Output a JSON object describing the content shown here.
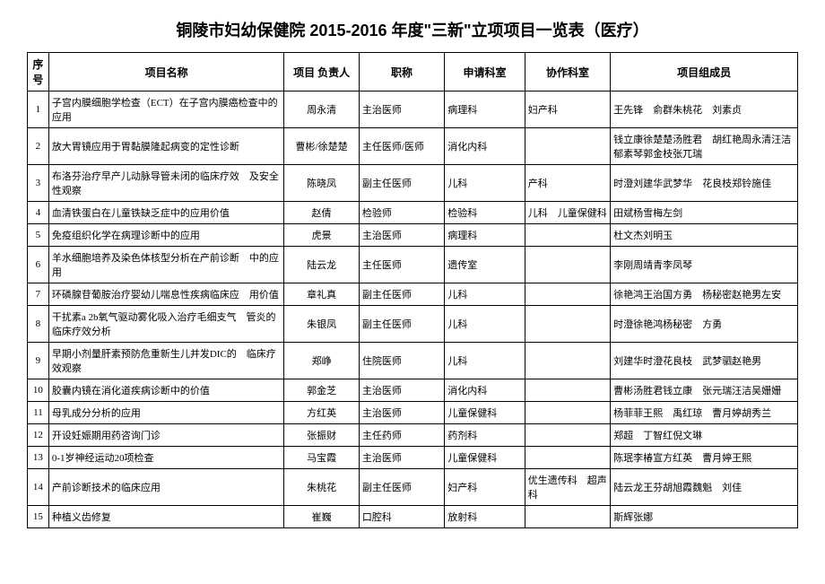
{
  "title": "铜陵市妇幼保健院 2015-2016 年度\"三新\"立项项目一览表（医疗）",
  "headers": {
    "seq": "序号",
    "name": "项目名称",
    "leader": "项目 负责人",
    "position": "职称",
    "dept": "申请科室",
    "coop": "协作科室",
    "members": "项目组成员"
  },
  "rows": [
    {
      "seq": "1",
      "name": "子宫内膜细胞学检查（ECT）在子宫内膜癌检查中的应用",
      "leader": "周永清",
      "position": "主治医师",
      "dept": "病理科",
      "coop": "妇产科",
      "members": "王先锋　俞群朱桃花　刘素贞"
    },
    {
      "seq": "2",
      "name": "放大胃镜应用于胃黏膜隆起病变的定性诊断",
      "leader": "曹彬/徐楚楚",
      "position": "主任医师/医师",
      "dept": "消化内科",
      "coop": "",
      "members": "钱立康徐楚楚汤胜君　胡红艳周永清汪洁　郁素琴郭金枝张兀瑞"
    },
    {
      "seq": "3",
      "name": "布洛芬治疗早产儿动脉导管未闭的临床疗效　及安全性观察",
      "leader": "陈晓凤",
      "position": "副主任医师",
      "dept": "儿科",
      "coop": "产科",
      "members": "时澄刘建华武梦华　花良枝郑铃施佳"
    },
    {
      "seq": "4",
      "name": "血清铁蛋白在儿童铁缺乏症中的应用价值",
      "leader": "赵倩",
      "position": "检验师",
      "dept": "检验科",
      "coop": "儿科　儿童保健科",
      "members": "田斌杨雪梅左剑"
    },
    {
      "seq": "5",
      "name": "免疫组织化学在病理诊断中的应用",
      "leader": "虎景",
      "position": "主治医师",
      "dept": "病理科",
      "coop": "",
      "members": "杜文杰刘明玉"
    },
    {
      "seq": "6",
      "name": "羊水细胞培养及染色体核型分析在产前诊断　中的应用",
      "leader": "陆云龙",
      "position": "主任医师",
      "dept": "遗传室",
      "coop": "",
      "members": "李刚周靖青李凤琴"
    },
    {
      "seq": "7",
      "name": "环磷腺苷葡胺治疗婴幼儿喘息性疾病临床应　用价值",
      "leader": "章礼真",
      "position": "副主任医师",
      "dept": "儿科",
      "coop": "",
      "members": "徐艳鸿王治国方勇　杨秘密赵艳男左安"
    },
    {
      "seq": "8",
      "name": "干扰素a 2b氧气驱动雾化吸入治疗毛细支气　管炎的临床疗效分析",
      "leader": "朱银凤",
      "position": "副主任医师",
      "dept": "儿科",
      "coop": "",
      "members": "时澄徐艳鸿杨秘密　方勇"
    },
    {
      "seq": "9",
      "name": "早期小剂量肝素预防危重新生儿并发DIC的　临床疗效观察",
      "leader": "郑峥",
      "position": "住院医师",
      "dept": "儿科",
      "coop": "",
      "members": "刘建华时澄花良枝　武梦驷赵艳男"
    },
    {
      "seq": "10",
      "name": "胶囊内镜在消化道疾病诊断中的价值",
      "leader": "郭金芝",
      "position": "主治医师",
      "dept": "消化内科",
      "coop": "",
      "members": "曹彬汤胜君钱立康　张元瑞汪洁吴姗姗"
    },
    {
      "seq": "11",
      "name": "母乳成分分析的应用",
      "leader": "方红英",
      "position": "主治医师",
      "dept": "儿童保健科",
      "coop": "",
      "members": "杨菲菲王熙　禹红琼　曹月婷胡秀兰"
    },
    {
      "seq": "12",
      "name": "开设妊娠期用药咨询门诊",
      "leader": "张振财",
      "position": "主任药师",
      "dept": "药剂科",
      "coop": "",
      "members": "郑超　丁智红倪文琳"
    },
    {
      "seq": "13",
      "name": "0-1岁神经运动20项检查",
      "leader": "马宝霞",
      "position": "主治医师",
      "dept": "儿童保健科",
      "coop": "",
      "members": "陈珉李椿宣方红英　曹月婷王熙"
    },
    {
      "seq": "14",
      "name": "产前诊断技术的临床应用",
      "leader": "朱桃花",
      "position": "副主任医师",
      "dept": "妇产科",
      "coop": "优生遗传科　超声科",
      "members": "陆云龙王芬胡旭霞魏魁　刘佳"
    },
    {
      "seq": "15",
      "name": "种植义齿修复",
      "leader": "崔巍",
      "position": "口腔科",
      "dept": "放射科",
      "coop": "",
      "members": "斯辉张娜"
    }
  ]
}
